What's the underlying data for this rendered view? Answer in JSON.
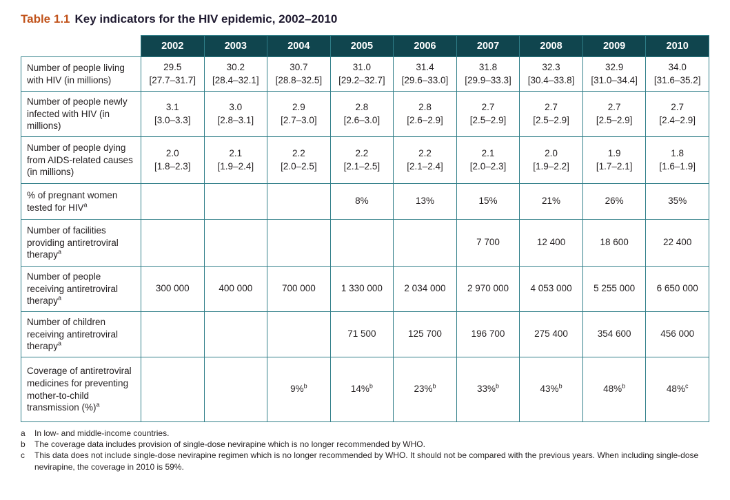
{
  "title": {
    "label": "Table 1.1",
    "text": "Key indicators for the HIV epidemic, 2002–2010"
  },
  "table": {
    "years": [
      "2002",
      "2003",
      "2004",
      "2005",
      "2006",
      "2007",
      "2008",
      "2009",
      "2010"
    ],
    "rows": [
      {
        "label": "Number of people living with HIV (in millions)",
        "cells": [
          {
            "v": "29.5",
            "r": "[27.7–31.7]"
          },
          {
            "v": "30.2",
            "r": "[28.4–32.1]"
          },
          {
            "v": "30.7",
            "r": "[28.8–32.5]"
          },
          {
            "v": "31.0",
            "r": "[29.2–32.7]"
          },
          {
            "v": "31.4",
            "r": "[29.6–33.0]"
          },
          {
            "v": "31.8",
            "r": "[29.9–33.3]"
          },
          {
            "v": "32.3",
            "r": "[30.4–33.8]"
          },
          {
            "v": "32.9",
            "r": "[31.0–34.4]"
          },
          {
            "v": "34.0",
            "r": "[31.6–35.2]"
          }
        ]
      },
      {
        "label": "Number of people newly infected with HIV (in millions)",
        "cells": [
          {
            "v": "3.1",
            "r": "[3.0–3.3]"
          },
          {
            "v": "3.0",
            "r": "[2.8–3.1]"
          },
          {
            "v": "2.9",
            "r": "[2.7–3.0]"
          },
          {
            "v": "2.8",
            "r": "[2.6–3.0]"
          },
          {
            "v": "2.8",
            "r": "[2.6–2.9]"
          },
          {
            "v": "2.7",
            "r": "[2.5–2.9]"
          },
          {
            "v": "2.7",
            "r": "[2.5–2.9]"
          },
          {
            "v": "2.7",
            "r": "[2.5–2.9]"
          },
          {
            "v": "2.7",
            "r": "[2.4–2.9]"
          }
        ]
      },
      {
        "label": "Number of people dying from AIDS-related causes (in millions)",
        "cells": [
          {
            "v": "2.0",
            "r": "[1.8–2.3]"
          },
          {
            "v": "2.1",
            "r": "[1.9–2.4]"
          },
          {
            "v": "2.2",
            "r": "[2.0–2.5]"
          },
          {
            "v": "2.2",
            "r": "[2.1–2.5]"
          },
          {
            "v": "2.2",
            "r": "[2.1–2.4]"
          },
          {
            "v": "2.1",
            "r": "[2.0–2.3]"
          },
          {
            "v": "2.0",
            "r": "[1.9–2.2]"
          },
          {
            "v": "1.9",
            "r": "[1.7–2.1]"
          },
          {
            "v": "1.8",
            "r": "[1.6–1.9]"
          }
        ]
      },
      {
        "label": "% of pregnant women tested for HIV",
        "label_sup": "a",
        "cells": [
          "",
          "",
          "",
          "8%",
          "13%",
          "15%",
          "21%",
          "26%",
          "35%"
        ]
      },
      {
        "label": "Number of facilities providing antiretroviral therapy",
        "label_sup": "a",
        "cells": [
          "",
          "",
          "",
          "",
          "",
          "7 700",
          "12 400",
          "18 600",
          "22 400"
        ]
      },
      {
        "label": "Number of people receiving antiretroviral therapy",
        "label_sup": "a",
        "cells": [
          "300 000",
          "400 000",
          "700 000",
          "1 330 000",
          "2 034 000",
          "2 970 000",
          "4 053 000",
          "5 255 000",
          "6 650 000"
        ]
      },
      {
        "label": "Number of children receiving antiretroviral therapy",
        "label_sup": "a",
        "cells": [
          "",
          "",
          "",
          "71 500",
          "125 700",
          "196 700",
          "275 400",
          "354 600",
          "456 000"
        ]
      },
      {
        "label": "Coverage of antiretroviral medicines for preventing mother-to-child transmission (%)",
        "label_sup": "a",
        "cells": [
          "",
          "",
          {
            "v": "9%",
            "sup": "b"
          },
          {
            "v": "14%",
            "sup": "b"
          },
          {
            "v": "23%",
            "sup": "b"
          },
          {
            "v": "33%",
            "sup": "b"
          },
          {
            "v": "43%",
            "sup": "b"
          },
          {
            "v": "48%",
            "sup": "b"
          },
          {
            "v": "48%",
            "sup": "c"
          }
        ]
      }
    ]
  },
  "footnotes": [
    {
      "marker": "a",
      "text": "In low- and middle-income countries."
    },
    {
      "marker": "b",
      "text": "The coverage data includes provision of single-dose nevirapine which is no longer recommended by WHO."
    },
    {
      "marker": "c",
      "text": "This data does not include single-dose nevirapine regimen which is no longer recommended by WHO. It should not be compared with the previous years. When including single-dose nevirapine, the coverage in 2010 is 59%."
    }
  ]
}
